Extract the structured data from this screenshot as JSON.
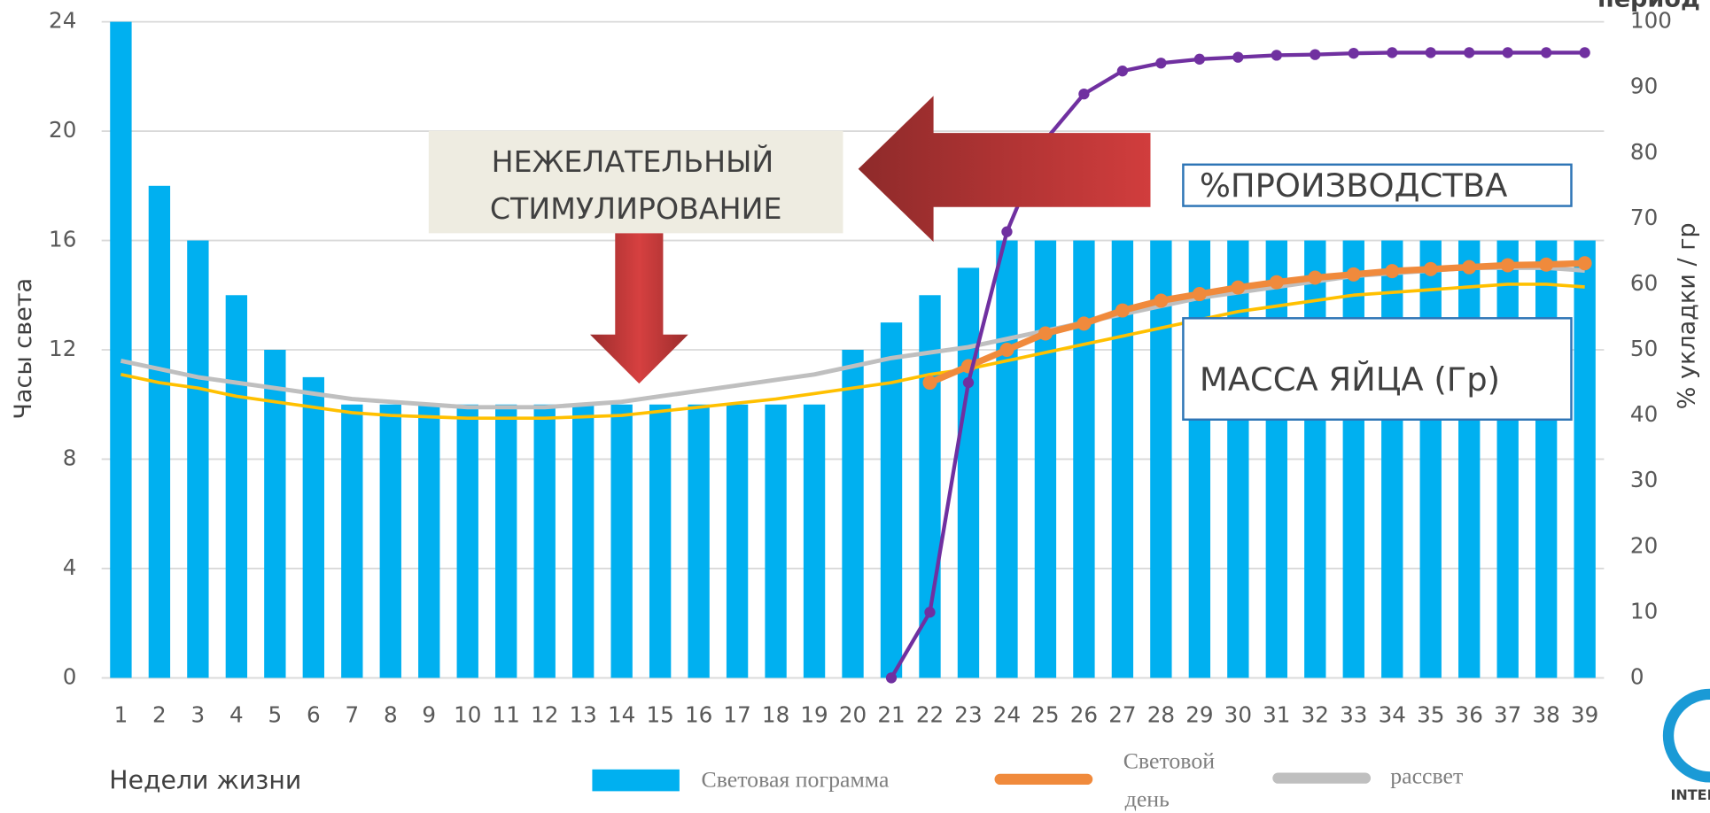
{
  "chart_data": {
    "type": "bar",
    "categories": [
      "1",
      "2",
      "3",
      "4",
      "5",
      "6",
      "7",
      "8",
      "9",
      "10",
      "11",
      "12",
      "13",
      "14",
      "15",
      "16",
      "17",
      "18",
      "19",
      "20",
      "21",
      "22",
      "23",
      "24",
      "25",
      "26",
      "27",
      "28",
      "29",
      "30",
      "31",
      "32",
      "33",
      "34",
      "35",
      "36",
      "37",
      "38",
      "39"
    ],
    "series": [
      {
        "name": "Световая пограмма",
        "type": "bar",
        "color": "#00b0f0",
        "values": [
          24,
          18,
          16,
          14,
          12,
          11,
          10,
          10,
          10,
          10,
          10,
          10,
          10,
          10,
          10,
          10,
          10,
          10,
          10,
          12,
          13,
          14,
          15,
          16,
          16,
          16,
          16,
          16,
          16,
          16,
          16,
          16,
          16,
          16,
          16,
          16,
          16,
          16,
          16
        ]
      },
      {
        "name": "рассвет",
        "type": "line",
        "color": "#bfbfbf",
        "values": [
          11.6,
          11.3,
          11.0,
          10.8,
          10.6,
          10.4,
          10.2,
          10.1,
          10.0,
          9.9,
          9.9,
          9.9,
          10.0,
          10.1,
          10.3,
          10.5,
          10.7,
          10.9,
          11.1,
          11.4,
          11.7,
          11.9,
          12.1,
          12.4,
          12.7,
          13.0,
          13.3,
          13.6,
          13.9,
          14.1,
          14.3,
          14.5,
          14.7,
          14.8,
          14.9,
          15.0,
          15.0,
          15.0,
          14.9
        ]
      },
      {
        "type": "line",
        "color": "#ffc000",
        "values": [
          11.1,
          10.8,
          10.6,
          10.3,
          10.1,
          9.9,
          9.7,
          9.6,
          9.55,
          9.5,
          9.5,
          9.5,
          9.55,
          9.6,
          9.75,
          9.9,
          10.05,
          10.2,
          10.4,
          10.6,
          10.8,
          11.1,
          11.3,
          11.6,
          11.9,
          12.2,
          12.5,
          12.8,
          13.1,
          13.4,
          13.6,
          13.8,
          14.0,
          14.1,
          14.2,
          14.3,
          14.4,
          14.4,
          14.3
        ]
      },
      {
        "name": "Световой день",
        "type": "line",
        "axis": "y2",
        "markers": true,
        "color": "#f08a3c",
        "values": [
          null,
          null,
          null,
          null,
          null,
          null,
          null,
          null,
          null,
          null,
          null,
          null,
          null,
          null,
          null,
          null,
          null,
          null,
          null,
          null,
          null,
          45,
          47.5,
          50,
          52.5,
          54,
          56,
          57.5,
          58.5,
          59.5,
          60.3,
          61,
          61.5,
          62,
          62.3,
          62.6,
          62.9,
          63,
          63.2
        ]
      },
      {
        "type": "line",
        "axis": "y2",
        "markers": true,
        "color": "#7030a0",
        "values": [
          null,
          null,
          null,
          null,
          null,
          null,
          null,
          null,
          null,
          null,
          null,
          null,
          null,
          null,
          null,
          null,
          null,
          null,
          null,
          null,
          0,
          10,
          45,
          68,
          82,
          89,
          92.5,
          93.7,
          94.3,
          94.6,
          94.9,
          95,
          95.2,
          95.3,
          95.3,
          95.3,
          95.3,
          95.3,
          95.3
        ]
      }
    ],
    "ylim": [
      0,
      24
    ],
    "yticks": [
      0,
      4,
      8,
      12,
      16,
      20,
      24
    ],
    "y2lim": [
      0,
      100
    ],
    "y2ticks": [
      0,
      10,
      20,
      30,
      40,
      50,
      60,
      70,
      80,
      90,
      100
    ],
    "grid": true,
    "ylabel": "Часы света",
    "y2label": "% укладки / гр",
    "y2title": "период",
    "xlabel": "Недели жизни",
    "annotations": [
      {
        "lines": [
          "НЕЖЕЛАТЕЛЬНЫЙ",
          "СТИМУЛИРОВАНИЕ"
        ]
      },
      {
        "text": "%ПРОИЗВОДСТВА"
      },
      {
        "text": "МАССА ЯЙЦА (Гр)"
      }
    ],
    "logo_text": "INTER"
  }
}
